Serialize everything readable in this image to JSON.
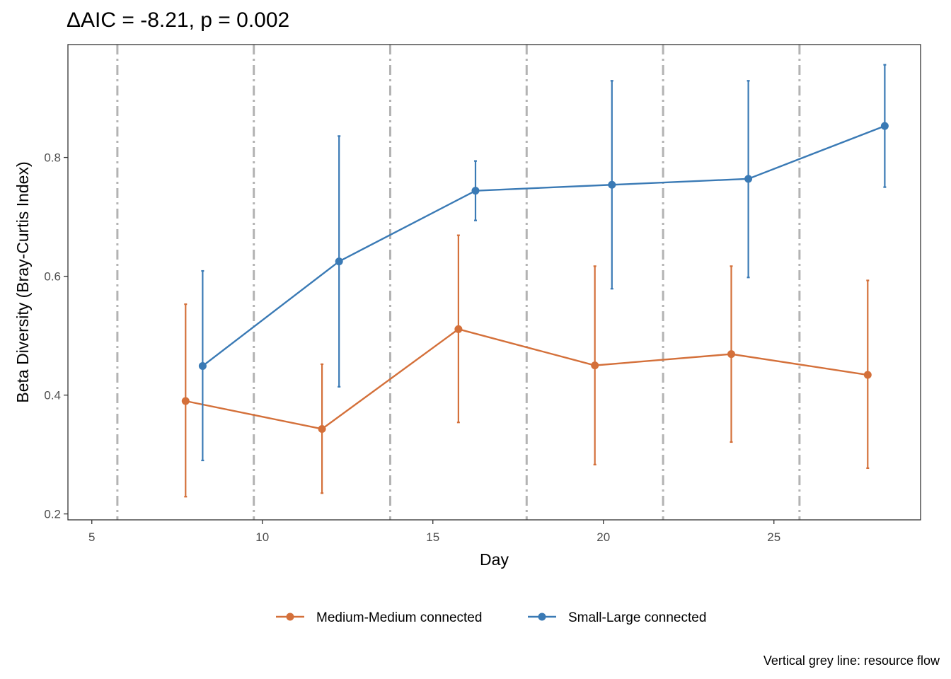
{
  "chart_data": {
    "type": "line",
    "title": "ΔAIC = -8.21, p = 0.002",
    "xlabel": "Day",
    "ylabel": "Beta Diversity (Bray-Curtis Index)",
    "xlim": [
      4.3,
      29.3
    ],
    "ylim": [
      0.19,
      0.99
    ],
    "x_ticks": [
      5,
      10,
      15,
      20,
      25
    ],
    "y_ticks": [
      0.2,
      0.4,
      0.6,
      0.8
    ],
    "x_tick_labels": [
      "5",
      "10",
      "15",
      "20",
      "25"
    ],
    "y_tick_labels": [
      "0.2",
      "0.4",
      "0.6",
      "0.8"
    ],
    "vlines": [
      5.75,
      9.75,
      13.75,
      17.75,
      21.75,
      25.75
    ],
    "vline_color": "#b3b3b3",
    "grid": false,
    "legend_position": "bottom",
    "caption": "Vertical grey line: resource flow",
    "series": [
      {
        "name": "Medium-Medium connected",
        "color": "#d4703a",
        "x": [
          7.75,
          11.75,
          15.75,
          19.75,
          23.75,
          27.75
        ],
        "y": [
          0.39,
          0.343,
          0.511,
          0.45,
          0.469,
          0.434
        ],
        "ymin": [
          0.229,
          0.235,
          0.354,
          0.283,
          0.321,
          0.277
        ],
        "ymax": [
          0.553,
          0.452,
          0.669,
          0.617,
          0.617,
          0.593
        ]
      },
      {
        "name": "Small-Large connected",
        "color": "#3a7ab5",
        "x": [
          8.25,
          12.25,
          16.25,
          20.25,
          24.25,
          28.25
        ],
        "y": [
          0.449,
          0.625,
          0.744,
          0.754,
          0.764,
          0.853
        ],
        "ymin": [
          0.29,
          0.414,
          0.694,
          0.579,
          0.598,
          0.75
        ],
        "ymax": [
          0.609,
          0.836,
          0.794,
          0.929,
          0.929,
          0.956
        ]
      }
    ]
  }
}
